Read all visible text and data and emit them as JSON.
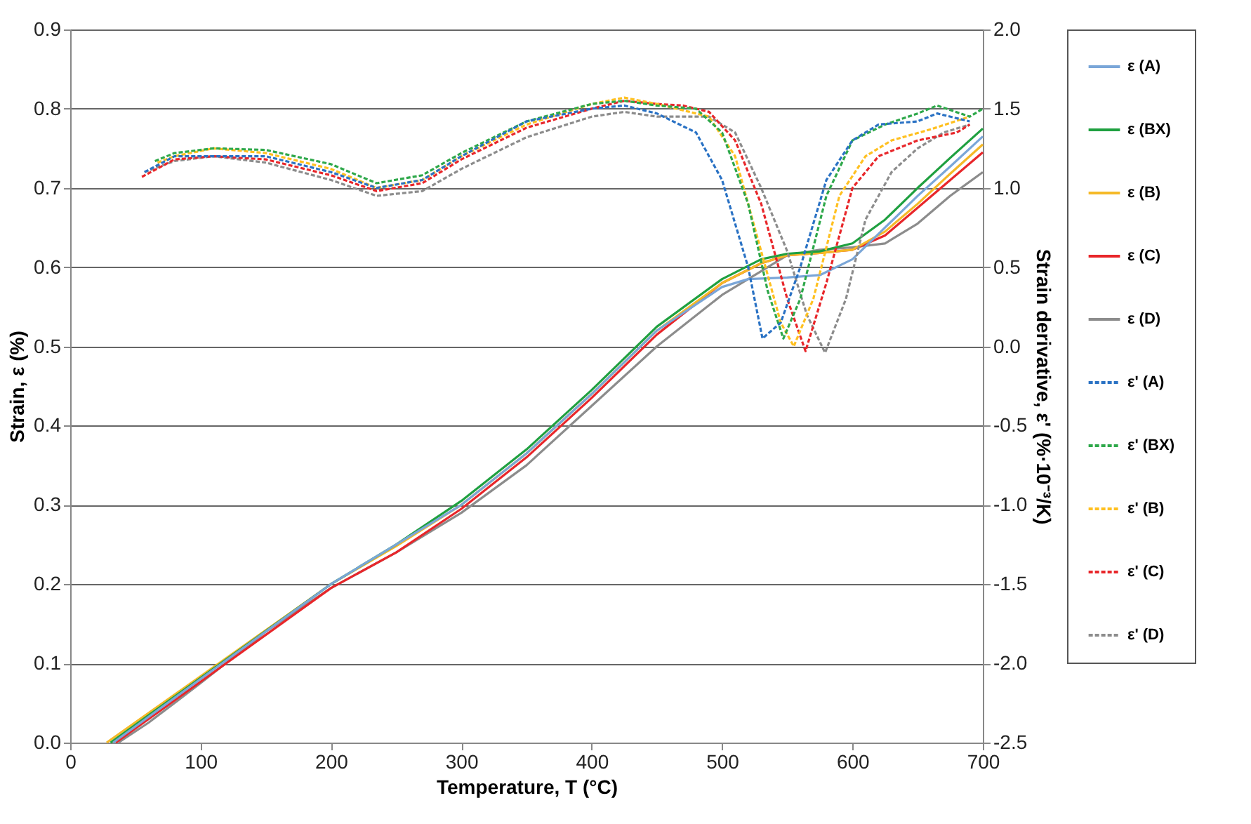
{
  "chart_data": {
    "type": "line",
    "xlabel": "Temperature, T (°C)",
    "ylabel": "Strain, ε (%)",
    "y2label": "Strain derivative, ε' (%·10⁻³/K)",
    "xlim": [
      0,
      700
    ],
    "xticks": [
      0,
      100,
      200,
      300,
      400,
      500,
      600,
      700
    ],
    "ylim": [
      0,
      0.9
    ],
    "yticks": [
      {
        "value": 0,
        "label": "0.0"
      },
      0.1,
      0.2,
      0.3,
      0.4,
      0.5,
      0.6,
      0.7,
      0.8,
      0.9
    ],
    "y2lim": [
      -2.5,
      2.0
    ],
    "y2ticks": [
      -2.5,
      {
        "value": -2,
        "label": "-2.0"
      },
      -1.5,
      {
        "value": -1,
        "label": "-1.0"
      },
      -0.5,
      {
        "value": 0,
        "label": "0.0"
      },
      0.5,
      {
        "value": 1,
        "label": "1.0"
      },
      1.5,
      {
        "value": 2,
        "label": "2.0"
      }
    ],
    "grid": "y",
    "legend": "right",
    "marker": "none",
    "series": [
      {
        "name": "ε (A)",
        "color": "#7aa6d8",
        "line_style": "solid",
        "x": [
          33,
          200,
          250,
          300,
          350,
          400,
          450,
          500,
          520,
          550,
          575,
          600,
          625,
          650,
          675,
          700
        ],
        "values": [
          0,
          0.2,
          0.25,
          0.3,
          0.365,
          0.44,
          0.52,
          0.575,
          0.585,
          0.587,
          0.59,
          0.61,
          0.65,
          0.69,
          0.727,
          0.765
        ]
      },
      {
        "name": "ε (BX)",
        "color": "#1fa040",
        "line_style": "solid",
        "x": [
          31,
          200,
          250,
          300,
          350,
          400,
          450,
          500,
          530,
          550,
          575,
          600,
          625,
          650,
          675,
          700
        ],
        "values": [
          0,
          0.2,
          0.25,
          0.305,
          0.37,
          0.445,
          0.525,
          0.585,
          0.61,
          0.617,
          0.62,
          0.63,
          0.66,
          0.7,
          0.738,
          0.775
        ]
      },
      {
        "name": "ε (B)",
        "color": "#f5b928",
        "line_style": "solid",
        "x": [
          28,
          200,
          250,
          300,
          350,
          400,
          450,
          500,
          530,
          550,
          575,
          600,
          625,
          650,
          675,
          700
        ],
        "values": [
          0,
          0.2,
          0.248,
          0.3,
          0.365,
          0.44,
          0.52,
          0.58,
          0.605,
          0.615,
          0.618,
          0.622,
          0.645,
          0.68,
          0.718,
          0.755
        ]
      },
      {
        "name": "ε (C)",
        "color": "#e8262a",
        "line_style": "solid",
        "x": [
          35,
          200,
          250,
          300,
          350,
          400,
          450,
          500,
          530,
          550,
          575,
          600,
          625,
          650,
          675,
          700
        ],
        "values": [
          0,
          0.195,
          0.24,
          0.295,
          0.36,
          0.435,
          0.515,
          0.58,
          0.605,
          0.615,
          0.618,
          0.622,
          0.64,
          0.675,
          0.71,
          0.745
        ]
      },
      {
        "name": "ε (D)",
        "color": "#8c8c8c",
        "line_style": "solid",
        "x": [
          37,
          60,
          100,
          150,
          200,
          250,
          300,
          350,
          400,
          450,
          500,
          530,
          550,
          575,
          600,
          625,
          650,
          675,
          700
        ],
        "values": [
          0,
          0.025,
          0.075,
          0.14,
          0.195,
          0.24,
          0.29,
          0.35,
          0.425,
          0.5,
          0.565,
          0.595,
          0.615,
          0.622,
          0.625,
          0.63,
          0.655,
          0.69,
          0.72
        ]
      },
      {
        "name": "ε' (A)",
        "color": "#2a72c4",
        "line_style": "dashed",
        "axis": "y2",
        "x": [
          57,
          80,
          110,
          150,
          200,
          235,
          270,
          300,
          350,
          400,
          425,
          450,
          480,
          500,
          520,
          531,
          545,
          560,
          580,
          600,
          620,
          650,
          665,
          690
        ],
        "values": [
          1.1,
          1.2,
          1.2,
          1.2,
          1.1,
          1.0,
          1.05,
          1.2,
          1.42,
          1.5,
          1.52,
          1.47,
          1.35,
          1.05,
          0.5,
          0.05,
          0.15,
          0.5,
          1.05,
          1.3,
          1.4,
          1.42,
          1.47,
          1.42
        ]
      },
      {
        "name": "ε' (BX)",
        "color": "#2ea84a",
        "line_style": "dashed",
        "axis": "y2",
        "x": [
          65,
          80,
          110,
          150,
          200,
          235,
          270,
          300,
          350,
          400,
          425,
          450,
          480,
          500,
          520,
          535,
          547,
          560,
          580,
          600,
          625,
          650,
          665,
          690,
          700
        ],
        "values": [
          1.17,
          1.22,
          1.25,
          1.24,
          1.15,
          1.03,
          1.08,
          1.22,
          1.42,
          1.53,
          1.55,
          1.52,
          1.5,
          1.35,
          0.9,
          0.35,
          0.05,
          0.3,
          0.95,
          1.3,
          1.4,
          1.47,
          1.52,
          1.45,
          1.5
        ]
      },
      {
        "name": "ε' (B)",
        "color": "#ffc020",
        "line_style": "dashed",
        "axis": "y2",
        "x": [
          67,
          80,
          110,
          150,
          200,
          235,
          270,
          300,
          350,
          400,
          425,
          450,
          490,
          510,
          530,
          545,
          555,
          570,
          590,
          610,
          630,
          660,
          690
        ],
        "values": [
          1.16,
          1.2,
          1.25,
          1.22,
          1.12,
          1.0,
          1.05,
          1.2,
          1.4,
          1.53,
          1.57,
          1.53,
          1.45,
          1.2,
          0.6,
          0.15,
          0.0,
          0.3,
          0.95,
          1.2,
          1.3,
          1.37,
          1.45
        ]
      },
      {
        "name": "ε' (C)",
        "color": "#e8262a",
        "line_style": "dashed",
        "axis": "y2",
        "x": [
          55,
          80,
          110,
          150,
          200,
          235,
          270,
          300,
          350,
          400,
          425,
          450,
          470,
          490,
          510,
          530,
          550,
          564,
          580,
          600,
          620,
          650,
          680,
          690
        ],
        "values": [
          1.07,
          1.18,
          1.2,
          1.18,
          1.08,
          0.98,
          1.03,
          1.18,
          1.38,
          1.5,
          1.55,
          1.53,
          1.52,
          1.48,
          1.3,
          0.9,
          0.3,
          -0.03,
          0.4,
          1.0,
          1.2,
          1.3,
          1.35,
          1.4
        ]
      },
      {
        "name": "ε' (D)",
        "color": "#8c8c8c",
        "line_style": "dashed",
        "axis": "y2",
        "x": [
          57,
          80,
          110,
          150,
          200,
          235,
          270,
          300,
          350,
          400,
          425,
          450,
          490,
          510,
          530,
          550,
          565,
          579,
          595,
          610,
          630,
          650,
          670,
          690
        ],
        "values": [
          1.1,
          1.17,
          1.2,
          1.16,
          1.05,
          0.95,
          0.98,
          1.12,
          1.32,
          1.45,
          1.48,
          1.45,
          1.45,
          1.35,
          1.0,
          0.6,
          0.2,
          -0.04,
          0.3,
          0.8,
          1.1,
          1.25,
          1.35,
          1.4
        ]
      }
    ]
  }
}
